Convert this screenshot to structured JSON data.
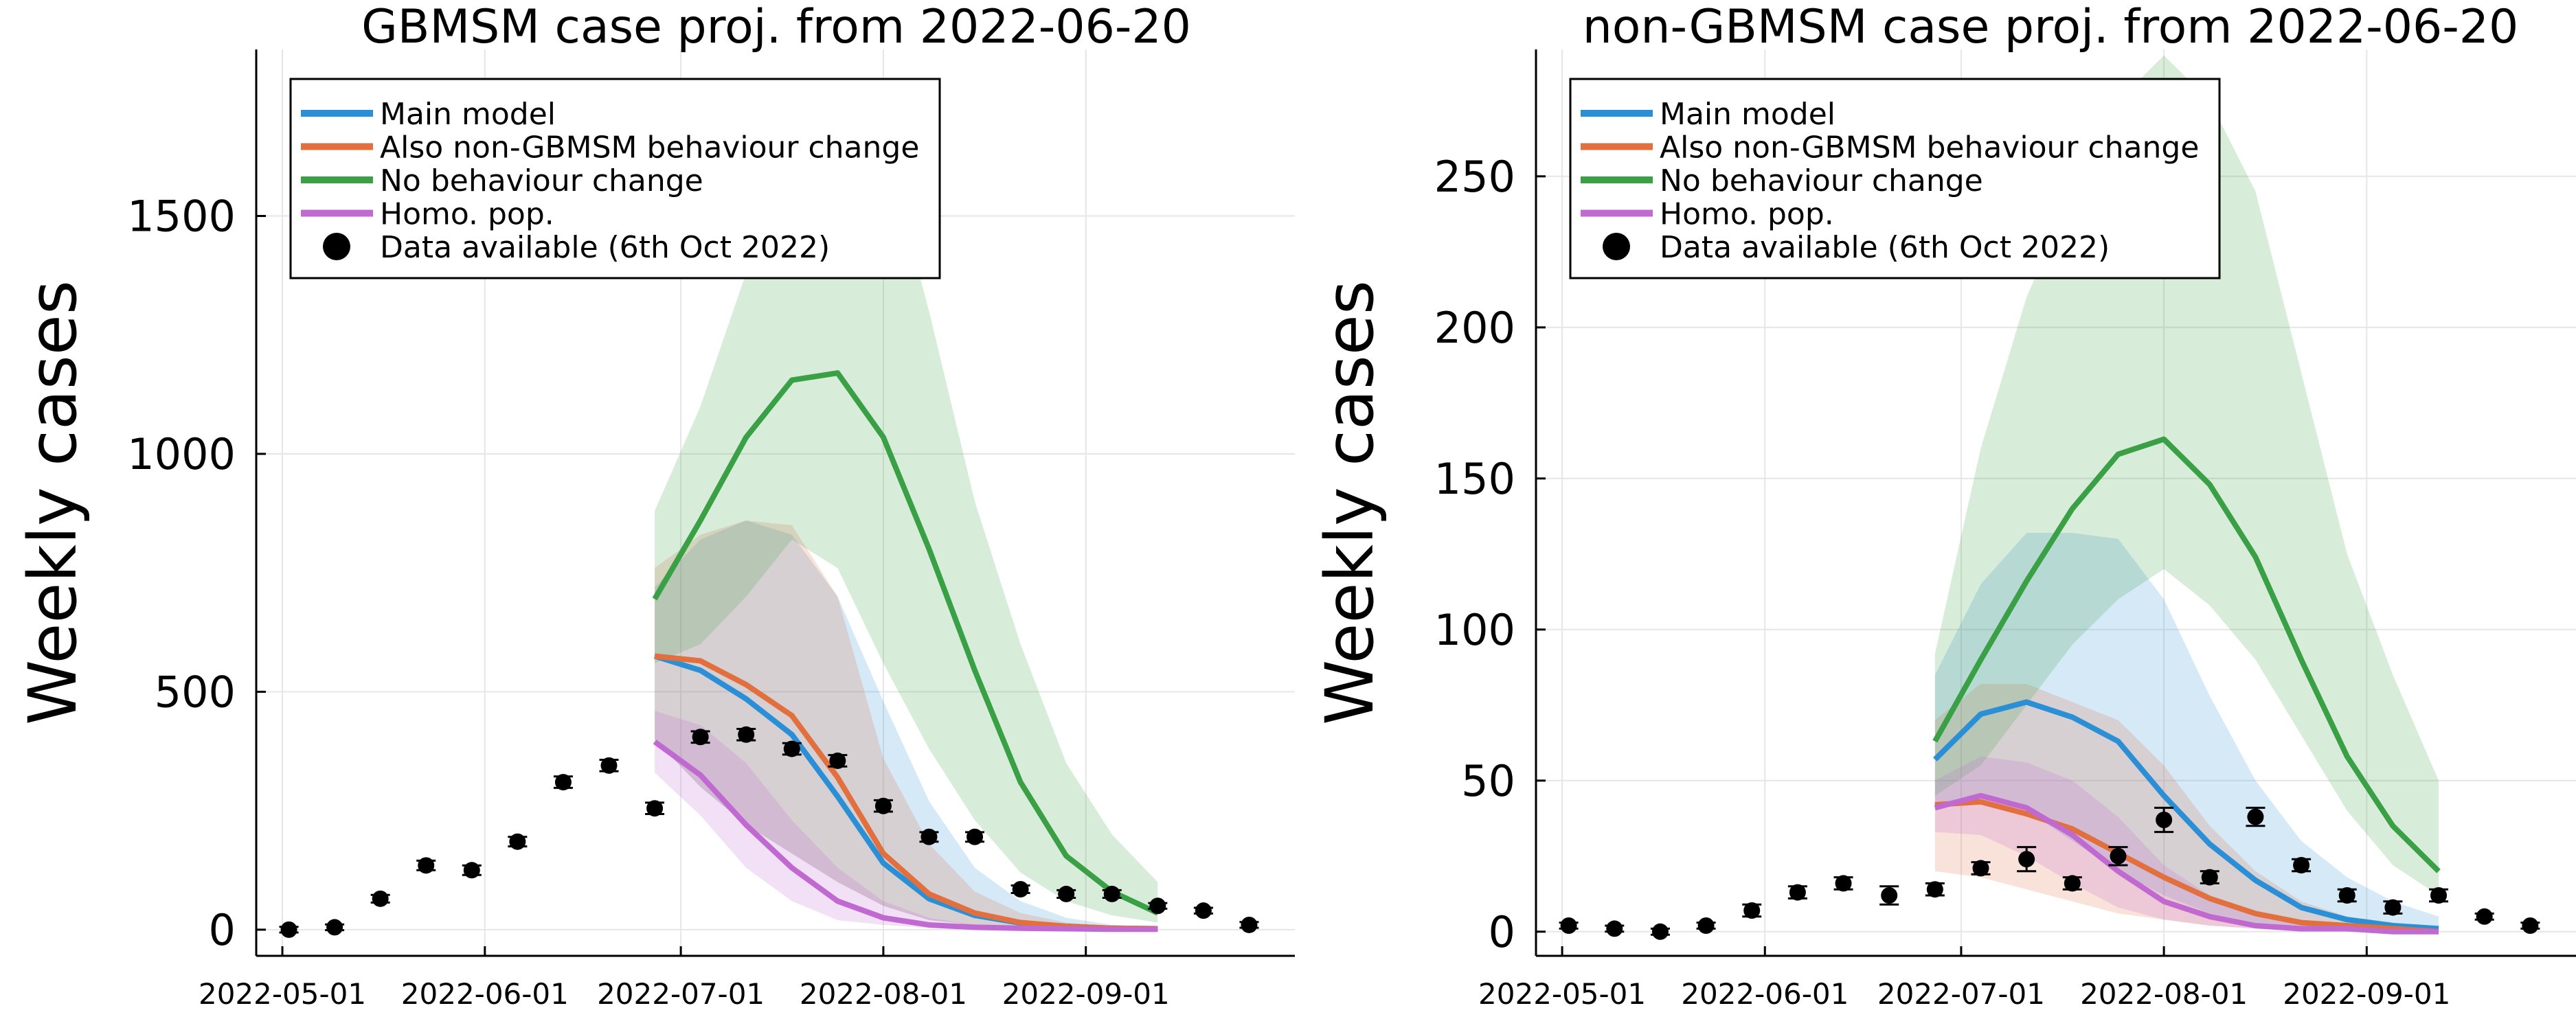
{
  "chart_data": [
    {
      "type": "line",
      "title": "GBMSM case proj. from 2022-06-20",
      "ylabel": "Weekly cases",
      "xlabel": "",
      "ylim": [
        -55,
        1850
      ],
      "yticks": [
        0,
        500,
        1000,
        1500
      ],
      "xlim": [
        "2022-04-27",
        "2022-10-03"
      ],
      "xticks": [
        "2022-05-01",
        "2022-06-01",
        "2022-07-01",
        "2022-08-01",
        "2022-09-01"
      ],
      "grid": true,
      "legend_position": "top-left",
      "proj_x": [
        "2022-06-27",
        "2022-07-04",
        "2022-07-11",
        "2022-07-18",
        "2022-07-25",
        "2022-08-01",
        "2022-08-08",
        "2022-08-15",
        "2022-08-22",
        "2022-08-29",
        "2022-09-05",
        "2022-09-12"
      ],
      "series": [
        {
          "name": "Main model",
          "color": "#2b8fd6",
          "values": [
            575,
            545,
            485,
            410,
            280,
            140,
            65,
            30,
            14,
            7,
            3,
            2
          ],
          "lower": [
            400,
            300,
            220,
            160,
            100,
            50,
            20,
            10,
            5,
            2,
            1,
            0
          ],
          "upper": [
            720,
            820,
            860,
            830,
            700,
            480,
            270,
            130,
            60,
            25,
            10,
            5
          ]
        },
        {
          "name": "Also non-GBMSM behaviour change",
          "color": "#e2703f",
          "values": [
            575,
            565,
            515,
            450,
            320,
            160,
            75,
            35,
            15,
            7,
            3,
            2
          ],
          "lower": [
            400,
            300,
            220,
            160,
            100,
            50,
            20,
            10,
            5,
            2,
            1,
            0
          ],
          "upper": [
            760,
            830,
            860,
            850,
            700,
            360,
            180,
            80,
            35,
            15,
            7,
            3
          ]
        },
        {
          "name": "No behaviour change",
          "color": "#3aa046",
          "values": [
            695,
            860,
            1035,
            1155,
            1170,
            1035,
            800,
            545,
            310,
            155,
            80,
            35
          ],
          "lower": [
            560,
            600,
            700,
            820,
            760,
            560,
            380,
            230,
            120,
            60,
            30,
            15
          ],
          "upper": [
            880,
            1100,
            1380,
            1620,
            1760,
            1660,
            1300,
            900,
            600,
            350,
            200,
            100
          ]
        },
        {
          "name": "Homo. pop.",
          "color": "#c069d0",
          "values": [
            395,
            325,
            220,
            130,
            60,
            25,
            10,
            5,
            3,
            2,
            1,
            1
          ],
          "lower": [
            330,
            240,
            130,
            60,
            20,
            10,
            4,
            2,
            1,
            0,
            0,
            0
          ],
          "upper": [
            460,
            430,
            350,
            230,
            130,
            60,
            25,
            10,
            5,
            3,
            2,
            1
          ]
        }
      ],
      "data_points": {
        "name": "Data available (6th Oct 2022)",
        "color": "#000000",
        "x": [
          "2022-05-02",
          "2022-05-09",
          "2022-05-16",
          "2022-05-23",
          "2022-05-30",
          "2022-06-06",
          "2022-06-13",
          "2022-06-20",
          "2022-06-27",
          "2022-07-04",
          "2022-07-11",
          "2022-07-18",
          "2022-07-25",
          "2022-08-01",
          "2022-08-08",
          "2022-08-15",
          "2022-08-22",
          "2022-08-29",
          "2022-09-05",
          "2022-09-12",
          "2022-09-19",
          "2022-09-26"
        ],
        "y": [
          0,
          5,
          65,
          135,
          125,
          185,
          310,
          345,
          255,
          405,
          410,
          380,
          355,
          260,
          195,
          195,
          85,
          75,
          75,
          50,
          40,
          10
        ],
        "err": [
          6,
          6,
          8,
          10,
          10,
          10,
          12,
          12,
          12,
          12,
          12,
          12,
          12,
          12,
          10,
          10,
          8,
          8,
          8,
          6,
          6,
          6
        ]
      }
    },
    {
      "type": "line",
      "title": "non-GBMSM case proj. from 2022-06-20",
      "ylabel": "Weekly cases",
      "xlabel": "",
      "ylim": [
        -8,
        292
      ],
      "yticks": [
        0,
        50,
        100,
        150,
        200,
        250
      ],
      "xlim": [
        "2022-04-27",
        "2022-10-03"
      ],
      "xticks": [
        "2022-05-01",
        "2022-06-01",
        "2022-07-01",
        "2022-08-01",
        "2022-09-01"
      ],
      "grid": true,
      "legend_position": "top-left",
      "proj_x": [
        "2022-06-27",
        "2022-07-04",
        "2022-07-11",
        "2022-07-18",
        "2022-07-25",
        "2022-08-01",
        "2022-08-08",
        "2022-08-15",
        "2022-08-22",
        "2022-08-29",
        "2022-09-05",
        "2022-09-12"
      ],
      "series": [
        {
          "name": "Main model",
          "color": "#2b8fd6",
          "values": [
            57,
            72,
            76,
            71,
            63,
            45,
            29,
            17,
            8,
            4,
            2,
            1
          ],
          "lower": [
            42,
            45,
            40,
            30,
            20,
            12,
            6,
            3,
            2,
            1,
            0,
            0
          ],
          "upper": [
            85,
            115,
            132,
            132,
            130,
            110,
            78,
            50,
            30,
            18,
            10,
            5
          ]
        },
        {
          "name": "Also non-GBMSM behaviour change",
          "color": "#e2703f",
          "values": [
            42,
            43,
            39,
            34,
            26,
            18,
            11,
            6,
            3,
            2,
            1,
            0
          ],
          "lower": [
            20,
            18,
            14,
            10,
            6,
            4,
            2,
            1,
            0,
            0,
            0,
            0
          ],
          "upper": [
            70,
            82,
            82,
            76,
            70,
            55,
            35,
            20,
            10,
            5,
            3,
            1
          ]
        },
        {
          "name": "No behaviour change",
          "color": "#3aa046",
          "values": [
            63,
            90,
            116,
            140,
            158,
            163,
            148,
            124,
            90,
            58,
            35,
            20
          ],
          "lower": [
            45,
            55,
            75,
            95,
            110,
            120,
            108,
            90,
            65,
            40,
            22,
            12
          ],
          "upper": [
            92,
            160,
            210,
            245,
            275,
            290,
            275,
            245,
            185,
            125,
            85,
            50
          ]
        },
        {
          "name": "Homo. pop.",
          "color": "#c069d0",
          "values": [
            41,
            45,
            41,
            32,
            20,
            10,
            5,
            2,
            1,
            1,
            0,
            0
          ],
          "lower": [
            33,
            32,
            25,
            16,
            8,
            4,
            2,
            1,
            0,
            0,
            0,
            0
          ],
          "upper": [
            50,
            58,
            56,
            50,
            38,
            22,
            12,
            6,
            3,
            2,
            1,
            0
          ]
        }
      ],
      "data_points": {
        "name": "Data available (6th Oct 2022)",
        "color": "#000000",
        "x": [
          "2022-05-02",
          "2022-05-09",
          "2022-05-16",
          "2022-05-23",
          "2022-05-30",
          "2022-06-06",
          "2022-06-13",
          "2022-06-20",
          "2022-06-27",
          "2022-07-04",
          "2022-07-11",
          "2022-07-18",
          "2022-07-25",
          "2022-08-01",
          "2022-08-08",
          "2022-08-15",
          "2022-08-22",
          "2022-08-29",
          "2022-09-05",
          "2022-09-12",
          "2022-09-19",
          "2022-09-26"
        ],
        "y": [
          2,
          1,
          0,
          2,
          7,
          13,
          16,
          12,
          14,
          21,
          24,
          16,
          25,
          37,
          18,
          38,
          22,
          12,
          8,
          12,
          5,
          2
        ],
        "err": [
          1,
          1,
          1,
          1,
          2,
          2,
          2,
          3,
          2,
          2,
          4,
          2,
          3,
          4,
          2,
          3,
          2,
          2,
          2,
          2,
          1,
          1
        ]
      }
    }
  ]
}
